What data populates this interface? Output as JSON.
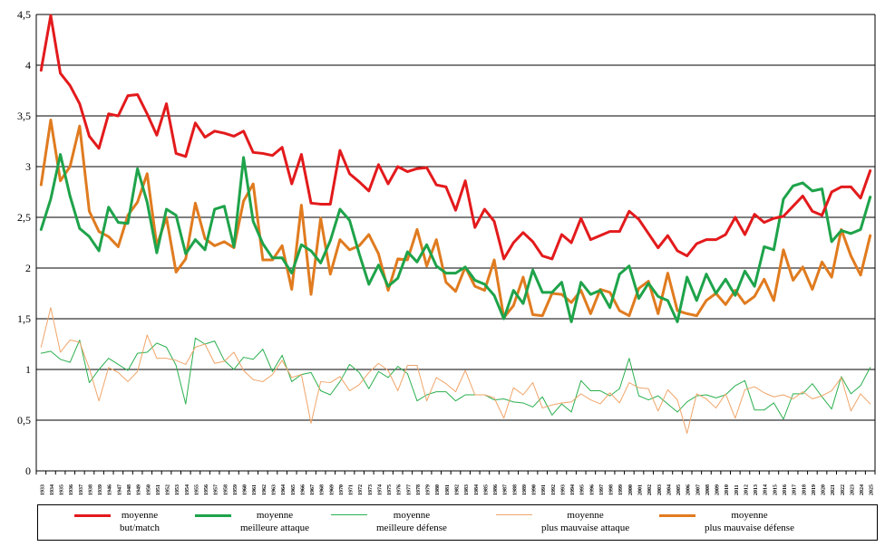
{
  "chart_data": {
    "type": "line",
    "title": "",
    "xlabel": "",
    "ylabel": "",
    "ylim": [
      0,
      4.5
    ],
    "yticks": [
      "0",
      "0,5",
      "1",
      "1,5",
      "2",
      "2,5",
      "3",
      "3,5",
      "4",
      "4,5"
    ],
    "grid": true,
    "legend_position": "bottom",
    "categories": [
      "1933",
      "1934",
      "1935",
      "1936",
      "1937",
      "1938",
      "1939",
      "1946",
      "1947",
      "1948",
      "1949",
      "1950",
      "1951",
      "1952",
      "1953",
      "1954",
      "1955",
      "1956",
      "1957",
      "1958",
      "1959",
      "1960",
      "1961",
      "1962",
      "1963",
      "1964",
      "1965",
      "1966",
      "1967",
      "1968",
      "1969",
      "1970",
      "1971",
      "1972",
      "1973",
      "1974",
      "1975",
      "1976",
      "1977",
      "1978",
      "1979",
      "1980",
      "1981",
      "1982",
      "1983",
      "1984",
      "1985",
      "1986",
      "1987",
      "1988",
      "1989",
      "1990",
      "1991",
      "1992",
      "1993",
      "1994",
      "1995",
      "1996",
      "1997",
      "1998",
      "1999",
      "2000",
      "2001",
      "2002",
      "2003",
      "2004",
      "2005",
      "2006",
      "2007",
      "2008",
      "2009",
      "2010",
      "2011",
      "2012",
      "2013",
      "2014",
      "2015",
      "2016",
      "2017",
      "2018",
      "2019",
      "2020",
      "2021",
      "2022",
      "2023",
      "2024",
      "2025"
    ],
    "series": [
      {
        "name": "moyenne\nbut/match",
        "color": "#e31a1c",
        "stroke": 3,
        "values": [
          3.95,
          4.49,
          3.92,
          3.8,
          3.62,
          3.3,
          3.18,
          3.52,
          3.5,
          3.7,
          3.71,
          3.52,
          3.31,
          3.62,
          3.13,
          3.1,
          3.43,
          3.29,
          3.35,
          3.33,
          3.3,
          3.35,
          3.14,
          3.13,
          3.11,
          3.19,
          2.83,
          3.12,
          2.64,
          2.63,
          2.63,
          3.16,
          2.93,
          2.85,
          2.76,
          3.02,
          2.83,
          3.0,
          2.95,
          2.98,
          2.99,
          2.82,
          2.8,
          2.57,
          2.86,
          2.4,
          2.58,
          2.46,
          2.09,
          2.25,
          2.35,
          2.26,
          2.12,
          2.09,
          2.33,
          2.25,
          2.49,
          2.28,
          2.32,
          2.36,
          2.36,
          2.56,
          2.48,
          2.34,
          2.2,
          2.32,
          2.17,
          2.12,
          2.24,
          2.28,
          2.28,
          2.33,
          2.5,
          2.33,
          2.53,
          2.45,
          2.49,
          2.51,
          2.61,
          2.71,
          2.56,
          2.52,
          2.75,
          2.8,
          2.8,
          2.69,
          2.96
        ]
      },
      {
        "name": "moyenne\nmeilleure attaque",
        "color": "#1ea34a",
        "stroke": 3,
        "values": [
          2.38,
          2.68,
          3.12,
          2.71,
          2.39,
          2.31,
          2.17,
          2.6,
          2.45,
          2.44,
          2.98,
          2.65,
          2.15,
          2.58,
          2.52,
          2.14,
          2.28,
          2.18,
          2.58,
          2.61,
          2.21,
          3.09,
          2.46,
          2.24,
          2.1,
          2.1,
          1.95,
          2.23,
          2.17,
          2.05,
          2.27,
          2.58,
          2.47,
          2.14,
          1.84,
          2.03,
          1.82,
          1.9,
          2.16,
          2.06,
          2.23,
          2.02,
          1.95,
          1.95,
          2.01,
          1.88,
          1.84,
          1.73,
          1.5,
          1.78,
          1.65,
          1.98,
          1.76,
          1.76,
          1.86,
          1.47,
          1.86,
          1.74,
          1.78,
          1.61,
          1.94,
          2.02,
          1.7,
          1.85,
          1.72,
          1.68,
          1.47,
          1.91,
          1.68,
          1.94,
          1.75,
          1.89,
          1.73,
          1.97,
          1.82,
          2.21,
          2.18,
          2.68,
          2.81,
          2.84,
          2.76,
          2.78,
          2.26,
          2.37,
          2.34,
          2.38,
          2.7
        ]
      },
      {
        "name": "moyenne\nmeilleure défense",
        "color": "#2bb04f",
        "stroke": 1,
        "values": [
          1.16,
          1.18,
          1.1,
          1.07,
          1.29,
          0.87,
          1.0,
          1.11,
          1.05,
          0.99,
          1.16,
          1.17,
          1.26,
          1.22,
          1.04,
          0.66,
          1.31,
          1.25,
          1.28,
          1.09,
          1.0,
          1.12,
          1.1,
          1.2,
          0.98,
          1.14,
          0.88,
          0.95,
          0.97,
          0.79,
          0.75,
          0.88,
          1.05,
          0.97,
          0.81,
          0.98,
          0.92,
          1.03,
          0.96,
          0.69,
          0.75,
          0.78,
          0.78,
          0.69,
          0.75,
          0.75,
          0.75,
          0.7,
          0.71,
          0.68,
          0.67,
          0.63,
          0.73,
          0.55,
          0.66,
          0.58,
          0.89,
          0.79,
          0.79,
          0.74,
          0.81,
          1.11,
          0.74,
          0.7,
          0.74,
          0.66,
          0.58,
          0.68,
          0.74,
          0.75,
          0.72,
          0.75,
          0.84,
          0.89,
          0.6,
          0.6,
          0.67,
          0.51,
          0.76,
          0.76,
          0.86,
          0.73,
          0.61,
          0.93,
          0.76,
          0.84,
          1.02
        ]
      },
      {
        "name": "moyenne\nplus mauvaise attaque",
        "color": "#f0a56a",
        "stroke": 1,
        "values": [
          1.22,
          1.61,
          1.17,
          1.29,
          1.27,
          1.01,
          0.69,
          1.02,
          0.97,
          0.88,
          0.98,
          1.34,
          1.11,
          1.11,
          1.09,
          1.05,
          1.22,
          1.25,
          1.06,
          1.08,
          1.17,
          0.99,
          0.9,
          0.88,
          0.95,
          1.09,
          0.92,
          0.95,
          0.47,
          0.88,
          0.87,
          0.93,
          0.79,
          0.85,
          0.97,
          1.06,
          0.99,
          0.79,
          1.04,
          1.04,
          0.69,
          0.92,
          0.86,
          0.78,
          0.99,
          0.75,
          0.75,
          0.72,
          0.52,
          0.82,
          0.75,
          0.87,
          0.62,
          0.65,
          0.67,
          0.68,
          0.76,
          0.7,
          0.66,
          0.77,
          0.67,
          0.87,
          0.82,
          0.81,
          0.59,
          0.8,
          0.7,
          0.37,
          0.76,
          0.71,
          0.62,
          0.76,
          0.52,
          0.8,
          0.83,
          0.77,
          0.73,
          0.75,
          0.71,
          0.78,
          0.71,
          0.74,
          0.79,
          0.92,
          0.59,
          0.76,
          0.66
        ]
      },
      {
        "name": "moyenne\nplus mauvaise défense",
        "color": "#e07b1f",
        "stroke": 3,
        "values": [
          2.82,
          3.46,
          2.86,
          3.0,
          3.4,
          2.56,
          2.36,
          2.31,
          2.21,
          2.52,
          2.65,
          2.93,
          2.22,
          2.5,
          1.96,
          2.09,
          2.64,
          2.29,
          2.22,
          2.26,
          2.2,
          2.66,
          2.83,
          2.08,
          2.08,
          2.22,
          1.79,
          2.62,
          1.74,
          2.49,
          1.94,
          2.28,
          2.18,
          2.22,
          2.33,
          2.14,
          1.78,
          2.09,
          2.08,
          2.38,
          2.02,
          2.28,
          1.86,
          1.77,
          2.01,
          1.82,
          1.78,
          2.08,
          1.51,
          1.63,
          1.91,
          1.54,
          1.53,
          1.75,
          1.74,
          1.66,
          1.78,
          1.55,
          1.79,
          1.76,
          1.58,
          1.53,
          1.8,
          1.87,
          1.55,
          1.95,
          1.58,
          1.55,
          1.53,
          1.68,
          1.75,
          1.64,
          1.78,
          1.65,
          1.72,
          1.89,
          1.68,
          2.18,
          1.88,
          2.01,
          1.79,
          2.06,
          1.91,
          2.38,
          2.12,
          1.93,
          2.32
        ]
      }
    ]
  }
}
